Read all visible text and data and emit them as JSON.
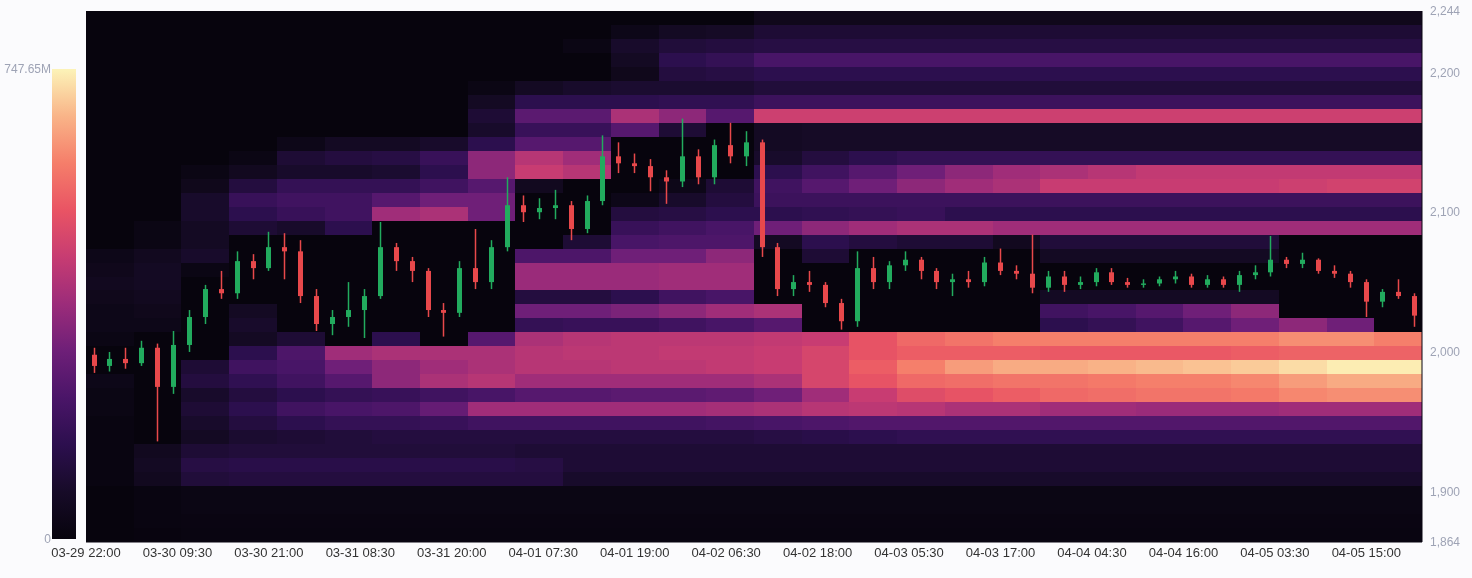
{
  "chart_data": [
    {
      "type": "heatmap",
      "categories": [
        null,
        null,
        null,
        null,
        null,
        null,
        null,
        null,
        null,
        null,
        null,
        null,
        null,
        null,
        null,
        null,
        null,
        null,
        null,
        null,
        null,
        null,
        null,
        null,
        null,
        null,
        null,
        null
      ],
      "y_categories": [
        null,
        null,
        null,
        null,
        null,
        null,
        null,
        null,
        null,
        null,
        null,
        null,
        null,
        null,
        null,
        null,
        null,
        null,
        null,
        null,
        null,
        null,
        null,
        null,
        null,
        null,
        null,
        null,
        null,
        null,
        null,
        null,
        null,
        null,
        null,
        null,
        null,
        null
      ],
      "cells": [
        [
          0,
          0,
          0,
          0,
          0,
          0,
          0,
          0,
          0,
          0,
          0,
          0,
          0,
          0,
          40,
          40,
          40,
          40,
          40,
          40,
          40,
          40,
          40,
          40,
          40,
          40,
          40,
          40
        ],
        [
          0,
          0,
          0,
          0,
          0,
          0,
          0,
          0,
          0,
          0,
          0,
          30,
          60,
          70,
          100,
          100,
          100,
          100,
          100,
          100,
          100,
          100,
          100,
          100,
          100,
          100,
          100,
          100
        ],
        [
          0,
          0,
          0,
          0,
          0,
          0,
          0,
          0,
          0,
          0,
          20,
          80,
          110,
          120,
          130,
          130,
          130,
          130,
          130,
          130,
          130,
          130,
          130,
          130,
          130,
          130,
          130,
          130
        ],
        [
          0,
          0,
          0,
          0,
          0,
          0,
          0,
          0,
          0,
          0,
          0,
          60,
          150,
          170,
          220,
          220,
          220,
          220,
          220,
          220,
          220,
          220,
          220,
          220,
          220,
          220,
          220,
          220
        ],
        [
          0,
          0,
          0,
          0,
          0,
          0,
          0,
          0,
          0,
          0,
          0,
          40,
          120,
          130,
          150,
          150,
          150,
          150,
          150,
          150,
          150,
          150,
          150,
          150,
          150,
          150,
          150,
          150
        ],
        [
          0,
          0,
          0,
          0,
          0,
          0,
          0,
          0,
          20,
          60,
          80,
          90,
          90,
          90,
          110,
          110,
          110,
          110,
          110,
          110,
          110,
          110,
          110,
          110,
          110,
          110,
          110,
          110
        ],
        [
          0,
          0,
          0,
          0,
          0,
          0,
          0,
          0,
          60,
          150,
          150,
          150,
          160,
          160,
          190,
          190,
          190,
          190,
          190,
          190,
          190,
          190,
          190,
          190,
          190,
          190,
          190,
          190
        ],
        [
          0,
          0,
          0,
          0,
          0,
          0,
          0,
          0,
          100,
          260,
          260,
          400,
          350,
          250,
          460,
          460,
          460,
          460,
          460,
          460,
          460,
          460,
          460,
          460,
          460,
          460,
          460,
          460
        ],
        [
          0,
          0,
          0,
          0,
          0,
          0,
          0,
          0,
          80,
          180,
          180,
          250,
          100,
          0,
          60,
          70,
          70,
          70,
          70,
          70,
          70,
          70,
          70,
          70,
          70,
          70,
          70,
          70
        ],
        [
          0,
          0,
          0,
          0,
          30,
          60,
          60,
          80,
          150,
          250,
          250,
          0,
          0,
          0,
          60,
          70,
          70,
          70,
          70,
          70,
          70,
          70,
          70,
          70,
          70,
          70,
          70,
          70
        ],
        [
          0,
          0,
          0,
          20,
          100,
          120,
          130,
          180,
          350,
          420,
          380,
          0,
          0,
          0,
          80,
          120,
          150,
          170,
          170,
          170,
          170,
          170,
          170,
          170,
          170,
          170,
          170,
          170
        ],
        [
          0,
          0,
          20,
          50,
          80,
          80,
          90,
          150,
          350,
          450,
          420,
          0,
          0,
          0,
          150,
          200,
          250,
          300,
          350,
          380,
          400,
          420,
          440,
          440,
          440,
          440,
          440,
          440
        ],
        [
          0,
          0,
          40,
          120,
          170,
          170,
          170,
          200,
          250,
          50,
          0,
          0,
          30,
          100,
          200,
          250,
          300,
          350,
          380,
          400,
          450,
          450,
          450,
          450,
          450,
          460,
          470,
          470
        ],
        [
          0,
          0,
          80,
          180,
          200,
          200,
          250,
          300,
          300,
          0,
          0,
          30,
          80,
          120,
          190,
          190,
          190,
          190,
          190,
          190,
          190,
          190,
          190,
          190,
          190,
          190,
          190,
          190
        ],
        [
          0,
          0,
          80,
          150,
          180,
          200,
          380,
          400,
          300,
          0,
          0,
          120,
          130,
          150,
          150,
          160,
          170,
          180,
          150,
          150,
          150,
          150,
          150,
          150,
          150,
          150,
          150,
          150
        ],
        [
          0,
          20,
          60,
          100,
          80,
          150,
          0,
          0,
          0,
          0,
          0,
          180,
          200,
          220,
          300,
          350,
          380,
          400,
          400,
          380,
          380,
          380,
          380,
          380,
          380,
          380,
          380,
          380
        ],
        [
          0,
          20,
          60,
          0,
          0,
          0,
          0,
          0,
          0,
          0,
          100,
          220,
          230,
          230,
          60,
          150,
          120,
          100,
          100,
          50,
          110,
          110,
          110,
          110,
          110,
          0,
          0,
          0
        ],
        [
          30,
          50,
          80,
          0,
          0,
          0,
          0,
          0,
          0,
          230,
          230,
          300,
          300,
          350,
          0,
          100,
          0,
          0,
          0,
          0,
          60,
          60,
          60,
          60,
          60,
          0,
          0,
          0
        ],
        [
          40,
          60,
          20,
          0,
          0,
          0,
          0,
          0,
          0,
          370,
          370,
          370,
          380,
          380,
          0,
          0,
          0,
          0,
          0,
          0,
          0,
          0,
          0,
          0,
          0,
          0,
          0,
          0
        ],
        [
          50,
          60,
          0,
          0,
          0,
          0,
          0,
          0,
          0,
          370,
          370,
          370,
          380,
          380,
          0,
          0,
          0,
          0,
          0,
          0,
          0,
          0,
          0,
          0,
          0,
          0,
          0,
          0
        ],
        [
          40,
          50,
          0,
          0,
          0,
          0,
          0,
          0,
          0,
          120,
          120,
          150,
          200,
          220,
          0,
          0,
          0,
          0,
          0,
          0,
          60,
          60,
          60,
          60,
          60,
          0,
          0,
          0
        ],
        [
          30,
          40,
          0,
          60,
          0,
          0,
          0,
          0,
          0,
          300,
          300,
          320,
          350,
          380,
          400,
          0,
          0,
          0,
          0,
          0,
          200,
          220,
          250,
          300,
          350,
          0,
          0,
          0
        ],
        [
          30,
          30,
          0,
          80,
          0,
          0,
          0,
          0,
          0,
          170,
          180,
          180,
          200,
          220,
          250,
          0,
          0,
          0,
          0,
          0,
          150,
          170,
          200,
          250,
          300,
          350,
          300,
          0
        ],
        [
          20,
          0,
          0,
          60,
          100,
          0,
          150,
          0,
          250,
          400,
          420,
          430,
          430,
          430,
          440,
          450,
          520,
          560,
          580,
          600,
          600,
          600,
          600,
          600,
          600,
          620,
          620,
          600
        ],
        [
          0,
          0,
          0,
          150,
          230,
          380,
          400,
          400,
          400,
          420,
          430,
          430,
          440,
          440,
          450,
          480,
          520,
          540,
          540,
          540,
          530,
          530,
          530,
          530,
          540,
          550,
          550,
          550
        ],
        [
          0,
          0,
          100,
          200,
          220,
          300,
          350,
          380,
          400,
          420,
          420,
          430,
          430,
          440,
          450,
          480,
          540,
          600,
          640,
          660,
          660,
          670,
          680,
          690,
          700,
          720,
          740,
          740
        ],
        [
          30,
          0,
          120,
          160,
          200,
          250,
          350,
          400,
          420,
          380,
          380,
          380,
          380,
          380,
          400,
          480,
          520,
          560,
          570,
          580,
          580,
          590,
          600,
          600,
          610,
          640,
          660,
          660
        ],
        [
          20,
          0,
          80,
          120,
          150,
          170,
          180,
          200,
          220,
          250,
          250,
          260,
          260,
          270,
          300,
          380,
          450,
          500,
          520,
          540,
          560,
          570,
          580,
          580,
          590,
          610,
          620,
          620
        ],
        [
          20,
          0,
          100,
          150,
          200,
          220,
          230,
          280,
          380,
          380,
          380,
          380,
          380,
          390,
          400,
          420,
          430,
          420,
          400,
          400,
          380,
          380,
          370,
          370,
          370,
          380,
          380,
          380
        ],
        [
          10,
          0,
          80,
          120,
          150,
          170,
          170,
          180,
          200,
          200,
          200,
          200,
          200,
          210,
          220,
          230,
          240,
          240,
          240,
          240,
          240,
          240,
          240,
          240,
          240,
          240,
          240,
          240
        ],
        [
          10,
          0,
          60,
          90,
          100,
          110,
          120,
          120,
          120,
          120,
          120,
          120,
          120,
          120,
          130,
          140,
          150,
          160,
          160,
          160,
          160,
          160,
          160,
          160,
          160,
          160,
          160,
          160
        ],
        [
          10,
          50,
          100,
          110,
          110,
          110,
          110,
          110,
          110,
          100,
          100,
          100,
          100,
          100,
          100,
          100,
          100,
          100,
          100,
          100,
          100,
          100,
          100,
          100,
          100,
          100,
          100,
          100
        ],
        [
          10,
          60,
          130,
          140,
          140,
          140,
          140,
          140,
          140,
          130,
          100,
          100,
          100,
          100,
          100,
          100,
          100,
          100,
          100,
          100,
          100,
          100,
          100,
          100,
          100,
          100,
          100,
          100
        ],
        [
          10,
          50,
          110,
          120,
          120,
          120,
          120,
          120,
          120,
          120,
          80,
          80,
          80,
          80,
          80,
          80,
          80,
          80,
          80,
          80,
          80,
          80,
          80,
          80,
          80,
          80,
          80,
          80
        ],
        [
          0,
          10,
          20,
          20,
          20,
          20,
          20,
          20,
          20,
          20,
          20,
          20,
          20,
          20,
          20,
          20,
          20,
          20,
          20,
          20,
          20,
          20,
          20,
          20,
          20,
          20,
          20,
          20
        ],
        [
          0,
          10,
          20,
          20,
          20,
          20,
          20,
          20,
          20,
          20,
          20,
          20,
          20,
          20,
          20,
          20,
          20,
          20,
          20,
          20,
          20,
          20,
          20,
          20,
          20,
          20,
          20,
          20
        ],
        [
          0,
          10,
          15,
          15,
          15,
          15,
          15,
          15,
          15,
          15,
          15,
          15,
          15,
          15,
          15,
          15,
          15,
          15,
          15,
          15,
          15,
          15,
          15,
          15,
          15,
          15,
          15,
          15
        ],
        [
          0,
          5,
          10,
          10,
          10,
          10,
          10,
          10,
          10,
          10,
          10,
          10,
          10,
          10,
          10,
          10,
          10,
          10,
          10,
          10,
          10,
          10,
          10,
          10,
          10,
          10,
          10,
          10
        ]
      ],
      "clim": [
        0,
        747.65
      ],
      "cticks": [
        {
          "value": 0,
          "label": "0"
        },
        {
          "value": 747.65,
          "label": "747.65M"
        }
      ],
      "tick_labels": false
    },
    {
      "type": "candlestick",
      "x": [
        "--03-29T23:00",
        "--03-30T01:00",
        "--03-30T03:00",
        "--03-30T05:00",
        "--03-30T07:00",
        "--03-30T09:00",
        "--03-30T11:00",
        "--03-30T13:00",
        "--03-30T15:00",
        "--03-30T17:00",
        "--03-30T19:00",
        "--03-30T21:00",
        "--03-30T23:00",
        "--03-31T01:00",
        "--03-31T03:00",
        "--03-31T05:00",
        "--03-31T07:00",
        "--03-31T09:00",
        "--03-31T11:00",
        "--03-31T13:00",
        "--03-31T15:00",
        "--03-31T17:00",
        "--03-31T19:00",
        "--03-31T21:00",
        "--03-31T23:00",
        "--04-01T01:00",
        "--04-01T03:00",
        "--04-01T05:00",
        "--04-01T07:00",
        "--04-01T09:00",
        "--04-01T11:00",
        "--04-01T13:00",
        "--04-01T15:00",
        "--04-01T17:00",
        "--04-01T19:00",
        "--04-01T21:00",
        "--04-01T23:00",
        "--04-02T01:00",
        "--04-02T03:00",
        "--04-02T05:00",
        "--04-02T07:00",
        "--04-02T09:00",
        "--04-02T11:00",
        "--04-02T13:00",
        "--04-02T15:00",
        "--04-02T17:00",
        "--04-02T19:00",
        "--04-02T21:00",
        "--04-02T23:00",
        "--04-03T01:00",
        "--04-03T03:00",
        "--04-03T05:00",
        "--04-03T07:00",
        "--04-03T09:00",
        "--04-03T11:00",
        "--04-03T13:00",
        "--04-03T15:00",
        "--04-03T17:00",
        "--04-03T19:00",
        "--04-03T21:00",
        "--04-03T23:00",
        "--04-04T01:00",
        "--04-04T03:00",
        "--04-04T05:00",
        "--04-04T07:00",
        "--04-04T09:00",
        "--04-04T11:00",
        "--04-04T13:00",
        "--04-04T15:00",
        "--04-04T17:00",
        "--04-04T19:00",
        "--04-04T21:00",
        "--04-04T23:00",
        "--04-05T01:00",
        "--04-05T03:00",
        "--04-05T05:00",
        "--04-05T07:00",
        "--04-05T09:00",
        "--04-05T11:00",
        "--04-05T13:00",
        "--04-05T15:00",
        "--04-05T17:00",
        "--04-05T19:00",
        "--04-05T21:00"
      ],
      "ohlc": [
        [
          1998,
          2003,
          1985,
          1990
        ],
        [
          1990,
          2000,
          1986,
          1995
        ],
        [
          1995,
          2003,
          1988,
          1992
        ],
        [
          1992,
          2008,
          1990,
          2003
        ],
        [
          2003,
          2006,
          1936,
          1975
        ],
        [
          1975,
          2015,
          1970,
          2005
        ],
        [
          2005,
          2030,
          2000,
          2025
        ],
        [
          2025,
          2048,
          2020,
          2045
        ],
        [
          2045,
          2058,
          2038,
          2042
        ],
        [
          2042,
          2072,
          2038,
          2065
        ],
        [
          2065,
          2070,
          2052,
          2060
        ],
        [
          2060,
          2086,
          2058,
          2075
        ],
        [
          2075,
          2085,
          2052,
          2072
        ],
        [
          2072,
          2080,
          2035,
          2040
        ],
        [
          2040,
          2045,
          2015,
          2020
        ],
        [
          2020,
          2030,
          2012,
          2025
        ],
        [
          2025,
          2050,
          2018,
          2030
        ],
        [
          2030,
          2045,
          2010,
          2040
        ],
        [
          2040,
          2093,
          2038,
          2075
        ],
        [
          2075,
          2078,
          2058,
          2065
        ],
        [
          2065,
          2068,
          2050,
          2058
        ],
        [
          2058,
          2060,
          2025,
          2030
        ],
        [
          2030,
          2035,
          2011,
          2028
        ],
        [
          2028,
          2065,
          2025,
          2060
        ],
        [
          2060,
          2088,
          2045,
          2050
        ],
        [
          2050,
          2080,
          2045,
          2075
        ],
        [
          2075,
          2125,
          2072,
          2105
        ],
        [
          2105,
          2112,
          2093,
          2100
        ],
        [
          2100,
          2110,
          2095,
          2103
        ],
        [
          2103,
          2116,
          2095,
          2105
        ],
        [
          2105,
          2108,
          2080,
          2088
        ],
        [
          2088,
          2112,
          2085,
          2108
        ],
        [
          2108,
          2155,
          2105,
          2140
        ],
        [
          2140,
          2150,
          2128,
          2135
        ],
        [
          2135,
          2142,
          2128,
          2133
        ],
        [
          2133,
          2138,
          2115,
          2125
        ],
        [
          2125,
          2130,
          2106,
          2122
        ],
        [
          2122,
          2167,
          2118,
          2140
        ],
        [
          2140,
          2145,
          2120,
          2125
        ],
        [
          2125,
          2152,
          2120,
          2148
        ],
        [
          2148,
          2164,
          2135,
          2140
        ],
        [
          2140,
          2158,
          2133,
          2150
        ],
        [
          2150,
          2152,
          2068,
          2075
        ],
        [
          2075,
          2078,
          2040,
          2045
        ],
        [
          2045,
          2055,
          2040,
          2050
        ],
        [
          2050,
          2058,
          2043,
          2048
        ],
        [
          2048,
          2050,
          2032,
          2035
        ],
        [
          2035,
          2038,
          2016,
          2022
        ],
        [
          2022,
          2072,
          2018,
          2060
        ],
        [
          2060,
          2068,
          2045,
          2050
        ],
        [
          2050,
          2065,
          2045,
          2062
        ],
        [
          2062,
          2072,
          2058,
          2066
        ],
        [
          2066,
          2068,
          2052,
          2058
        ],
        [
          2058,
          2060,
          2045,
          2050
        ],
        [
          2050,
          2056,
          2040,
          2052
        ],
        [
          2052,
          2058,
          2046,
          2050
        ],
        [
          2050,
          2068,
          2047,
          2064
        ],
        [
          2064,
          2074,
          2055,
          2058
        ],
        [
          2058,
          2062,
          2052,
          2056
        ],
        [
          2056,
          2084,
          2042,
          2046
        ],
        [
          2046,
          2058,
          2043,
          2054
        ],
        [
          2054,
          2058,
          2043,
          2048
        ],
        [
          2048,
          2054,
          2045,
          2050
        ],
        [
          2050,
          2060,
          2047,
          2057
        ],
        [
          2057,
          2060,
          2048,
          2050
        ],
        [
          2050,
          2053,
          2046,
          2048
        ],
        [
          2048,
          2052,
          2046,
          2049
        ],
        [
          2049,
          2054,
          2047,
          2052
        ],
        [
          2052,
          2058,
          2049,
          2054
        ],
        [
          2054,
          2056,
          2046,
          2048
        ],
        [
          2048,
          2055,
          2046,
          2052
        ],
        [
          2052,
          2054,
          2046,
          2048
        ],
        [
          2048,
          2058,
          2043,
          2055
        ],
        [
          2055,
          2062,
          2052,
          2057
        ],
        [
          2057,
          2083,
          2054,
          2066
        ],
        [
          2066,
          2068,
          2060,
          2063
        ],
        [
          2063,
          2071,
          2060,
          2066
        ],
        [
          2066,
          2067,
          2056,
          2058
        ],
        [
          2058,
          2062,
          2053,
          2056
        ],
        [
          2056,
          2058,
          2046,
          2050
        ],
        [
          2050,
          2052,
          2025,
          2036
        ],
        [
          2036,
          2045,
          2032,
          2043
        ],
        [
          2043,
          2052,
          2038,
          2040
        ],
        [
          2040,
          2042,
          2018,
          2026
        ]
      ],
      "colors": [
        "#e8484b",
        "#22ab5e",
        "#e8484b",
        "#22ab5e",
        "#e8484b",
        "#22ab5e",
        "#22ab5e",
        "#22ab5e",
        "#e8484b",
        "#22ab5e",
        "#e8484b",
        "#22ab5e",
        "#e8484b",
        "#e8484b",
        "#e8484b",
        "#22ab5e",
        "#22ab5e",
        "#22ab5e",
        "#22ab5e",
        "#e8484b",
        "#e8484b",
        "#e8484b",
        "#e8484b",
        "#22ab5e",
        "#e8484b",
        "#22ab5e",
        "#22ab5e",
        "#e8484b",
        "#22ab5e",
        "#22ab5e",
        "#e8484b",
        "#22ab5e",
        "#22ab5e",
        "#e8484b",
        "#e8484b",
        "#e8484b",
        "#e8484b",
        "#22ab5e",
        "#e8484b",
        "#22ab5e",
        "#e8484b",
        "#22ab5e",
        "#e8484b",
        "#e8484b",
        "#22ab5e",
        "#e8484b",
        "#e8484b",
        "#e8484b",
        "#22ab5e",
        "#e8484b",
        "#22ab5e",
        "#22ab5e",
        "#e8484b",
        "#e8484b",
        "#22ab5e",
        "#e8484b",
        "#22ab5e",
        "#e8484b",
        "#e8484b",
        "#e8484b",
        "#22ab5e",
        "#e8484b",
        "#22ab5e",
        "#22ab5e",
        "#e8484b",
        "#e8484b",
        "#22ab5e",
        "#22ab5e",
        "#22ab5e",
        "#e8484b",
        "#22ab5e",
        "#e8484b",
        "#22ab5e",
        "#22ab5e",
        "#22ab5e",
        "#e8484b",
        "#22ab5e",
        "#e8484b",
        "#e8484b",
        "#e8484b",
        "#e8484b",
        "#22ab5e",
        "#e8484b",
        "#e8484b"
      ],
      "xlim": [
        "--03-29T22:00",
        "--04-05T22:00"
      ],
      "xticks": [
        {
          "value": "--03-29T22:00",
          "label": "03-29 22:00"
        },
        {
          "value": "--03-30T09:30",
          "label": "03-30 09:30"
        },
        {
          "value": "--03-30T21:00",
          "label": "03-30 21:00"
        },
        {
          "value": "--03-31T08:30",
          "label": "03-31 08:30"
        },
        {
          "value": "--03-31T20:00",
          "label": "03-31 20:00"
        },
        {
          "value": "--04-01T07:30",
          "label": "04-01 07:30"
        },
        {
          "value": "--04-01T19:00",
          "label": "04-01 19:00"
        },
        {
          "value": "--04-02T06:30",
          "label": "04-02 06:30"
        },
        {
          "value": "--04-02T18:00",
          "label": "04-02 18:00"
        },
        {
          "value": "--04-03T05:30",
          "label": "04-03 05:30"
        },
        {
          "value": "--04-03T17:00",
          "label": "04-03 17:00"
        },
        {
          "value": "--04-04T04:30",
          "label": "04-04 04:30"
        },
        {
          "value": "--04-04T16:00",
          "label": "04-04 16:00"
        },
        {
          "value": "--04-05T03:30",
          "label": "04-05 03:30"
        },
        {
          "value": "--04-05T15:00",
          "label": "04-05 15:00"
        }
      ],
      "ylim": [
        1864,
        2244
      ],
      "yticks": [
        {
          "value": 1864,
          "label": "1,864"
        },
        {
          "value": 1900,
          "label": "1,900"
        },
        {
          "value": 2000,
          "label": "2,000"
        },
        {
          "value": 2100,
          "label": "2,100"
        },
        {
          "value": 2200,
          "label": "2,200"
        },
        {
          "value": 2244,
          "label": "2,244"
        }
      ]
    }
  ]
}
